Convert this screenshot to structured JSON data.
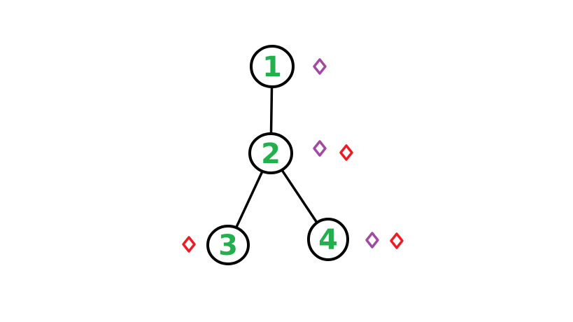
{
  "colors": {
    "node_stroke": "#000000",
    "label": "#22b04c",
    "edge": "#000000",
    "marker_purple": "#a349a4",
    "marker_red": "#ed1c24",
    "background": "#ffffff"
  },
  "nodes": [
    {
      "id": "1",
      "label": "1"
    },
    {
      "id": "2",
      "label": "2"
    },
    {
      "id": "3",
      "label": "3"
    },
    {
      "id": "4",
      "label": "4"
    }
  ],
  "edges": [
    {
      "from": "1",
      "to": "2"
    },
    {
      "from": "2",
      "to": "3"
    },
    {
      "from": "2",
      "to": "4"
    }
  ],
  "markers": [
    {
      "node": "1",
      "side": "right",
      "color": "purple",
      "shape": "diamond-outline"
    },
    {
      "node": "2",
      "side": "right",
      "color": "purple",
      "shape": "diamond-outline"
    },
    {
      "node": "2",
      "side": "right",
      "color": "red",
      "shape": "diamond-outline"
    },
    {
      "node": "3",
      "side": "left",
      "color": "red",
      "shape": "diamond-outline"
    },
    {
      "node": "4",
      "side": "right",
      "color": "purple",
      "shape": "diamond-outline"
    },
    {
      "node": "4",
      "side": "right",
      "color": "red",
      "shape": "diamond-outline"
    }
  ]
}
